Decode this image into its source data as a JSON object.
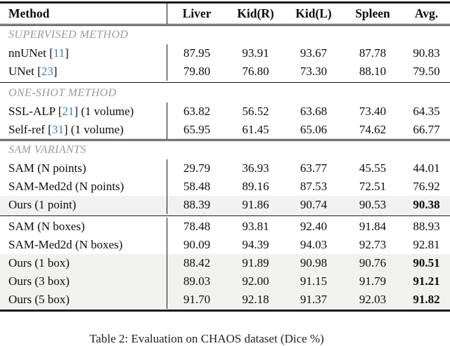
{
  "caption": "Table 2: Evaluation on CHAOS dataset (Dice %)",
  "colors": {
    "citation_blue": "#3f7cba",
    "section_gray": "#9a9a9a",
    "highlight_bg": "#f1f1ef",
    "rule_ink": "#161616"
  },
  "table": {
    "columns": [
      "Method",
      "Liver",
      "Kid(R)",
      "Kid(L)",
      "Spleen",
      "Avg."
    ],
    "groups": [
      {
        "rule_before": "none",
        "label": "SUPERVISED METHOD",
        "rows": [
          {
            "method_pre": "nnUNet [",
            "cite": "11",
            "method_post": "]",
            "values": [
              "87.95",
              "93.91",
              "93.67",
              "87.78",
              "90.83"
            ],
            "highlight": false,
            "bold_avg": false
          },
          {
            "method_pre": "UNet [",
            "cite": "23",
            "method_post": "]",
            "values": [
              "79.80",
              "76.80",
              "73.30",
              "88.10",
              "79.50"
            ],
            "highlight": false,
            "bold_avg": false
          }
        ]
      },
      {
        "rule_before": "single",
        "label": "ONE-SHOT METHOD",
        "rows": [
          {
            "method_pre": "SSL-ALP [",
            "cite": "21",
            "method_post": "] (1 volume)",
            "values": [
              "63.82",
              "56.52",
              "63.68",
              "73.40",
              "64.35"
            ],
            "highlight": false,
            "bold_avg": false
          },
          {
            "method_pre": "Self-ref [",
            "cite": "31",
            "method_post": "] (1 volume)",
            "values": [
              "65.95",
              "61.45",
              "65.06",
              "74.62",
              "66.77"
            ],
            "highlight": false,
            "bold_avg": false
          }
        ]
      },
      {
        "rule_before": "double",
        "label": "SAM VARIANTS",
        "rows": [
          {
            "method_pre": "SAM (N points)",
            "cite": "",
            "method_post": "",
            "values": [
              "29.79",
              "36.93",
              "63.77",
              "45.55",
              "44.01"
            ],
            "highlight": false,
            "bold_avg": false
          },
          {
            "method_pre": "SAM-Med2d (N points)",
            "cite": "",
            "method_post": "",
            "values": [
              "58.48",
              "89.16",
              "87.53",
              "72.51",
              "76.92"
            ],
            "highlight": false,
            "bold_avg": false
          },
          {
            "method_pre": "Ours (1 point)",
            "cite": "",
            "method_post": "",
            "values": [
              "88.39",
              "91.86",
              "90.74",
              "90.53",
              "90.38"
            ],
            "highlight": true,
            "bold_avg": true
          }
        ]
      },
      {
        "rule_before": "single",
        "label": null,
        "rows": [
          {
            "method_pre": "SAM (N boxes)",
            "cite": "",
            "method_post": "",
            "values": [
              "78.48",
              "93.81",
              "92.40",
              "91.84",
              "88.93"
            ],
            "highlight": false,
            "bold_avg": false
          },
          {
            "method_pre": "SAM-Med2d (N boxes)",
            "cite": "",
            "method_post": "",
            "values": [
              "90.09",
              "94.39",
              "94.03",
              "92.73",
              "92.81"
            ],
            "highlight": false,
            "bold_avg": false
          },
          {
            "method_pre": "Ours (1 box)",
            "cite": "",
            "method_post": "",
            "values": [
              "88.42",
              "91.89",
              "90.98",
              "90.76",
              "90.51"
            ],
            "highlight": true,
            "bold_avg": true
          },
          {
            "method_pre": "Ours (3 box)",
            "cite": "",
            "method_post": "",
            "values": [
              "89.03",
              "92.00",
              "91.15",
              "91.79",
              "91.21"
            ],
            "highlight": true,
            "bold_avg": true
          },
          {
            "method_pre": "Ours (5 box)",
            "cite": "",
            "method_post": "",
            "values": [
              "91.70",
              "92.18",
              "91.37",
              "92.03",
              "91.82"
            ],
            "highlight": true,
            "bold_avg": true
          }
        ]
      }
    ]
  }
}
